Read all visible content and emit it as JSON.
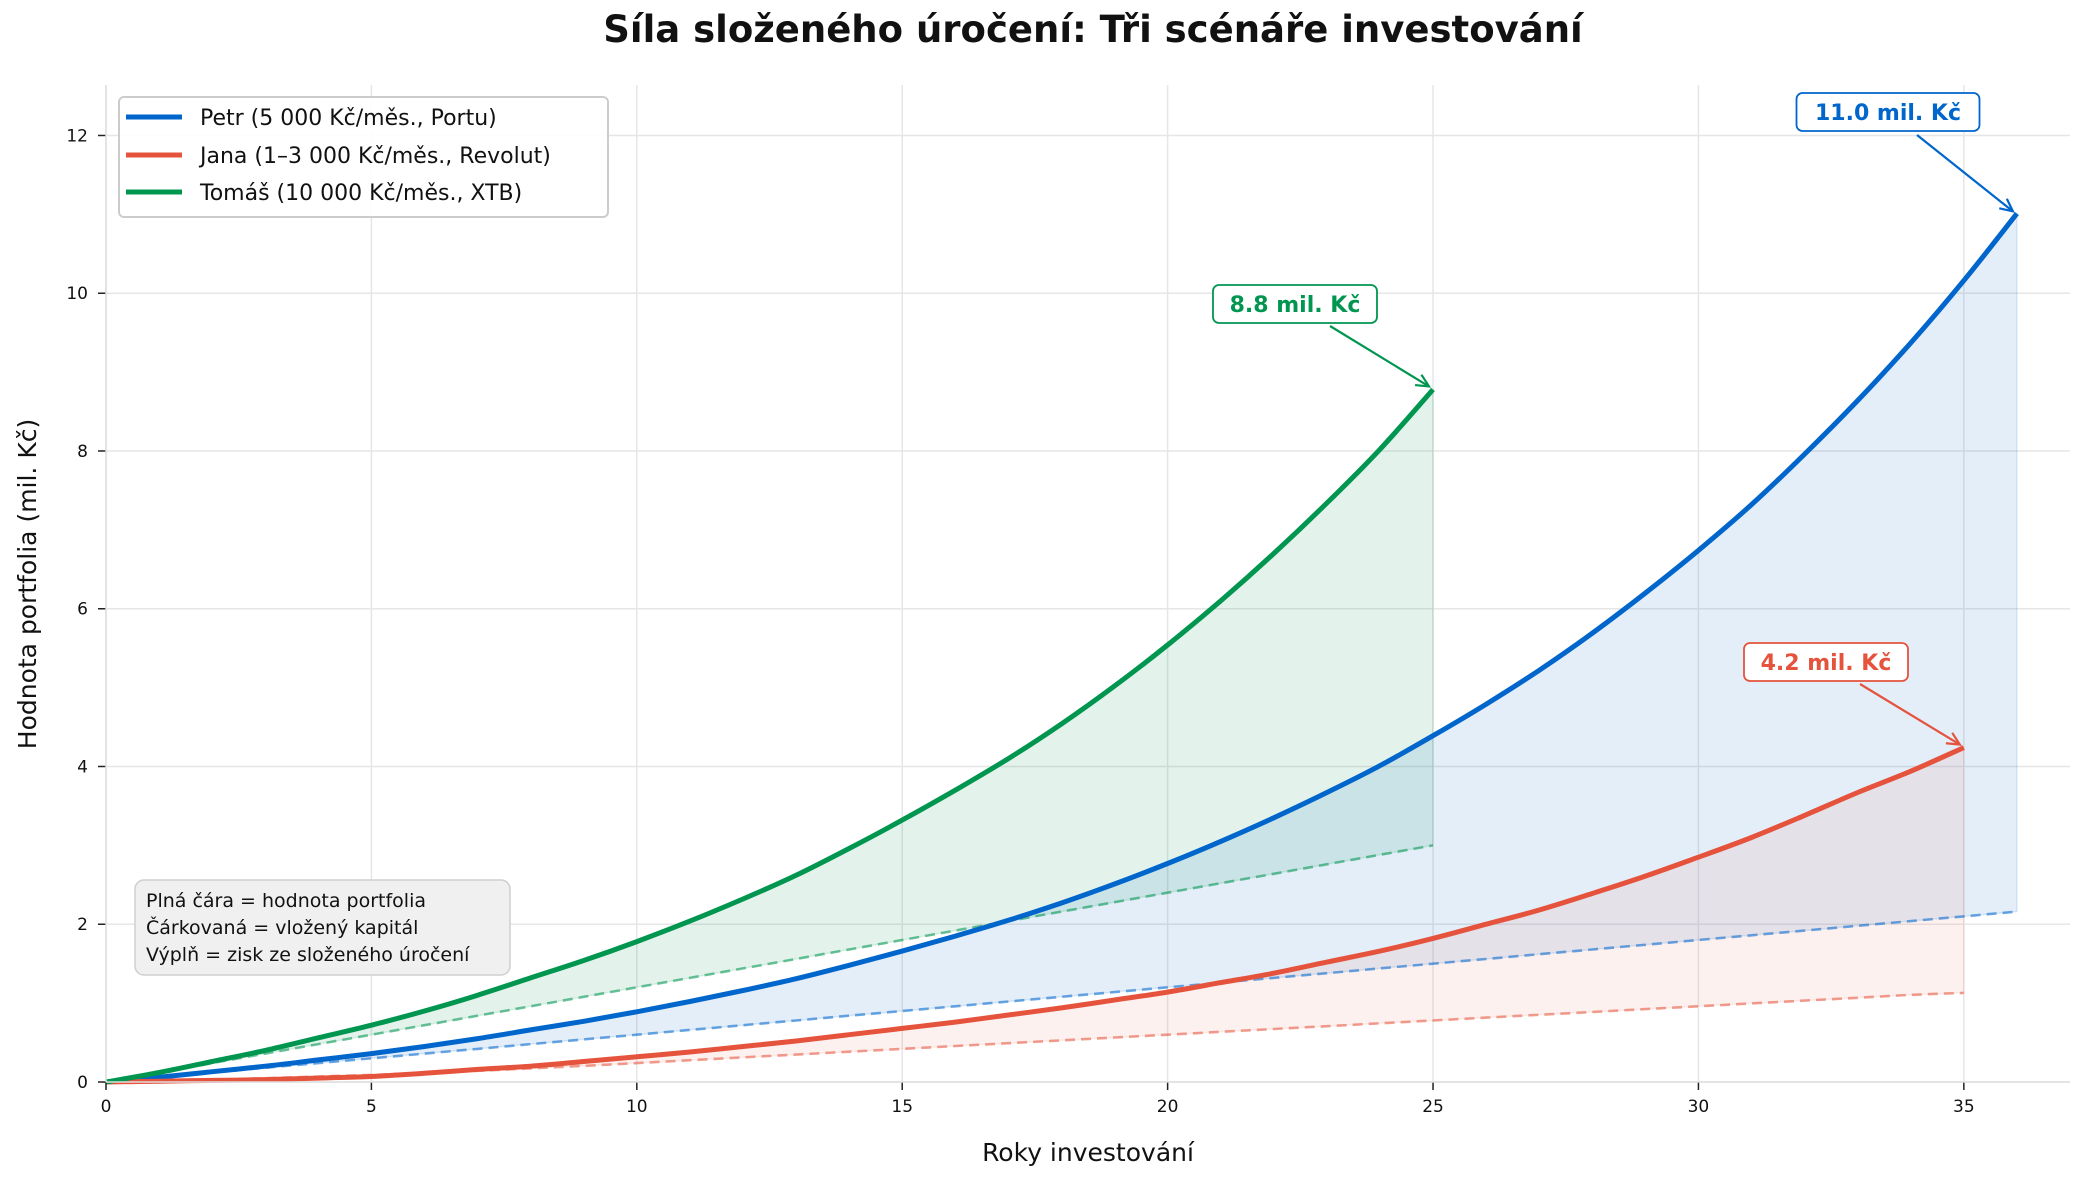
{
  "chart_data": {
    "type": "line",
    "title": "Síla složeného úročení: Tři scénáře investování",
    "xlabel": "Roky investování",
    "ylabel": "Hodnota portfolia (mil. Kč)",
    "xlim": [
      0,
      37
    ],
    "ylim": [
      0,
      12.64
    ],
    "xticks": [
      0,
      5,
      10,
      15,
      20,
      25,
      30,
      35
    ],
    "yticks": [
      0,
      2,
      4,
      6,
      8,
      10,
      12
    ],
    "grid": true,
    "legend_position": "upper left",
    "series": [
      {
        "name": "Petr (5 000 Kč/měs., Portu)",
        "color": "#0066CC",
        "fill_color": "#0066CC",
        "x": [
          0,
          1,
          2,
          3,
          4,
          5,
          6,
          7,
          8,
          9,
          10,
          11,
          12,
          13,
          14,
          15,
          16,
          17,
          18,
          19,
          20,
          21,
          22,
          23,
          24,
          25,
          26,
          27,
          28,
          29,
          30,
          31,
          32,
          33,
          34,
          35,
          36
        ],
        "portfolio": [
          0,
          0.06,
          0.13,
          0.2,
          0.28,
          0.36,
          0.45,
          0.55,
          0.66,
          0.77,
          0.89,
          1.02,
          1.16,
          1.31,
          1.48,
          1.66,
          1.85,
          2.05,
          2.27,
          2.51,
          2.77,
          3.05,
          3.35,
          3.67,
          4.01,
          4.39,
          4.79,
          5.22,
          5.69,
          6.2,
          6.74,
          7.32,
          7.96,
          8.64,
          9.37,
          10.16,
          11.01
        ],
        "invested": [
          0,
          0.06,
          0.12,
          0.18,
          0.24,
          0.3,
          0.36,
          0.42,
          0.48,
          0.54,
          0.6,
          0.66,
          0.72,
          0.78,
          0.84,
          0.9,
          0.96,
          1.02,
          1.08,
          1.14,
          1.2,
          1.26,
          1.32,
          1.38,
          1.44,
          1.5,
          1.56,
          1.62,
          1.68,
          1.74,
          1.8,
          1.86,
          1.92,
          1.98,
          2.04,
          2.1,
          2.16
        ]
      },
      {
        "name": "Jana (1–3 000 Kč/měs., Revolut)",
        "color": "#E5533D",
        "fill_color": "#F08070",
        "x": [
          0,
          1,
          2,
          3,
          4,
          5,
          6,
          7,
          8,
          9,
          10,
          11,
          12,
          13,
          14,
          15,
          16,
          17,
          18,
          19,
          20,
          21,
          22,
          23,
          24,
          25,
          26,
          27,
          28,
          29,
          30,
          31,
          32,
          33,
          34,
          35
        ],
        "portfolio": [
          0,
          0.01,
          0.02,
          0.03,
          0.05,
          0.07,
          0.11,
          0.16,
          0.2,
          0.26,
          0.32,
          0.38,
          0.45,
          0.52,
          0.6,
          0.68,
          0.76,
          0.85,
          0.94,
          1.04,
          1.14,
          1.26,
          1.38,
          1.52,
          1.66,
          1.82,
          2.0,
          2.18,
          2.39,
          2.61,
          2.85,
          3.1,
          3.38,
          3.67,
          3.94,
          4.24
        ],
        "invested": [
          0,
          0.013,
          0.029,
          0.048,
          0.07,
          0.09,
          0.115,
          0.142,
          0.172,
          0.204,
          0.24,
          0.276,
          0.312,
          0.348,
          0.384,
          0.42,
          0.456,
          0.492,
          0.528,
          0.564,
          0.6,
          0.636,
          0.672,
          0.708,
          0.744,
          0.78,
          0.816,
          0.852,
          0.888,
          0.924,
          0.96,
          0.996,
          1.032,
          1.068,
          1.104,
          1.13
        ]
      },
      {
        "name": "Tomáš (10 000 Kč/měs., XTB)",
        "color": "#009650",
        "fill_color": "#009650",
        "x": [
          0,
          1,
          2,
          3,
          4,
          5,
          6,
          7,
          8,
          9,
          10,
          11,
          12,
          13,
          14,
          15,
          16,
          17,
          18,
          19,
          20,
          21,
          22,
          23,
          24,
          25
        ],
        "portfolio": [
          0,
          0.12,
          0.26,
          0.4,
          0.56,
          0.72,
          0.9,
          1.1,
          1.32,
          1.54,
          1.78,
          2.04,
          2.32,
          2.62,
          2.96,
          3.32,
          3.7,
          4.1,
          4.54,
          5.02,
          5.54,
          6.1,
          6.7,
          7.34,
          8.02,
          8.78
        ],
        "invested": [
          0,
          0.12,
          0.24,
          0.36,
          0.48,
          0.6,
          0.72,
          0.84,
          0.96,
          1.08,
          1.2,
          1.32,
          1.44,
          1.56,
          1.68,
          1.8,
          1.92,
          2.04,
          2.16,
          2.28,
          2.4,
          2.52,
          2.64,
          2.76,
          2.88,
          3.0
        ]
      }
    ],
    "annotations": [
      {
        "text": "11.0 mil. Kč",
        "series": 0,
        "x": 36,
        "y": 11.0,
        "color": "#0066CC"
      },
      {
        "text": "8.8 mil. Kč",
        "series": 2,
        "x": 25,
        "y": 8.78,
        "color": "#009650"
      },
      {
        "text": "4.2 mil. Kč",
        "series": 1,
        "x": 35,
        "y": 4.24,
        "color": "#E5533D"
      }
    ],
    "note_lines": [
      "Plná čára = hodnota portfolia",
      "Čárkovaná = vložený kapitál",
      "Výplň = zisk ze složeného úročení"
    ]
  }
}
